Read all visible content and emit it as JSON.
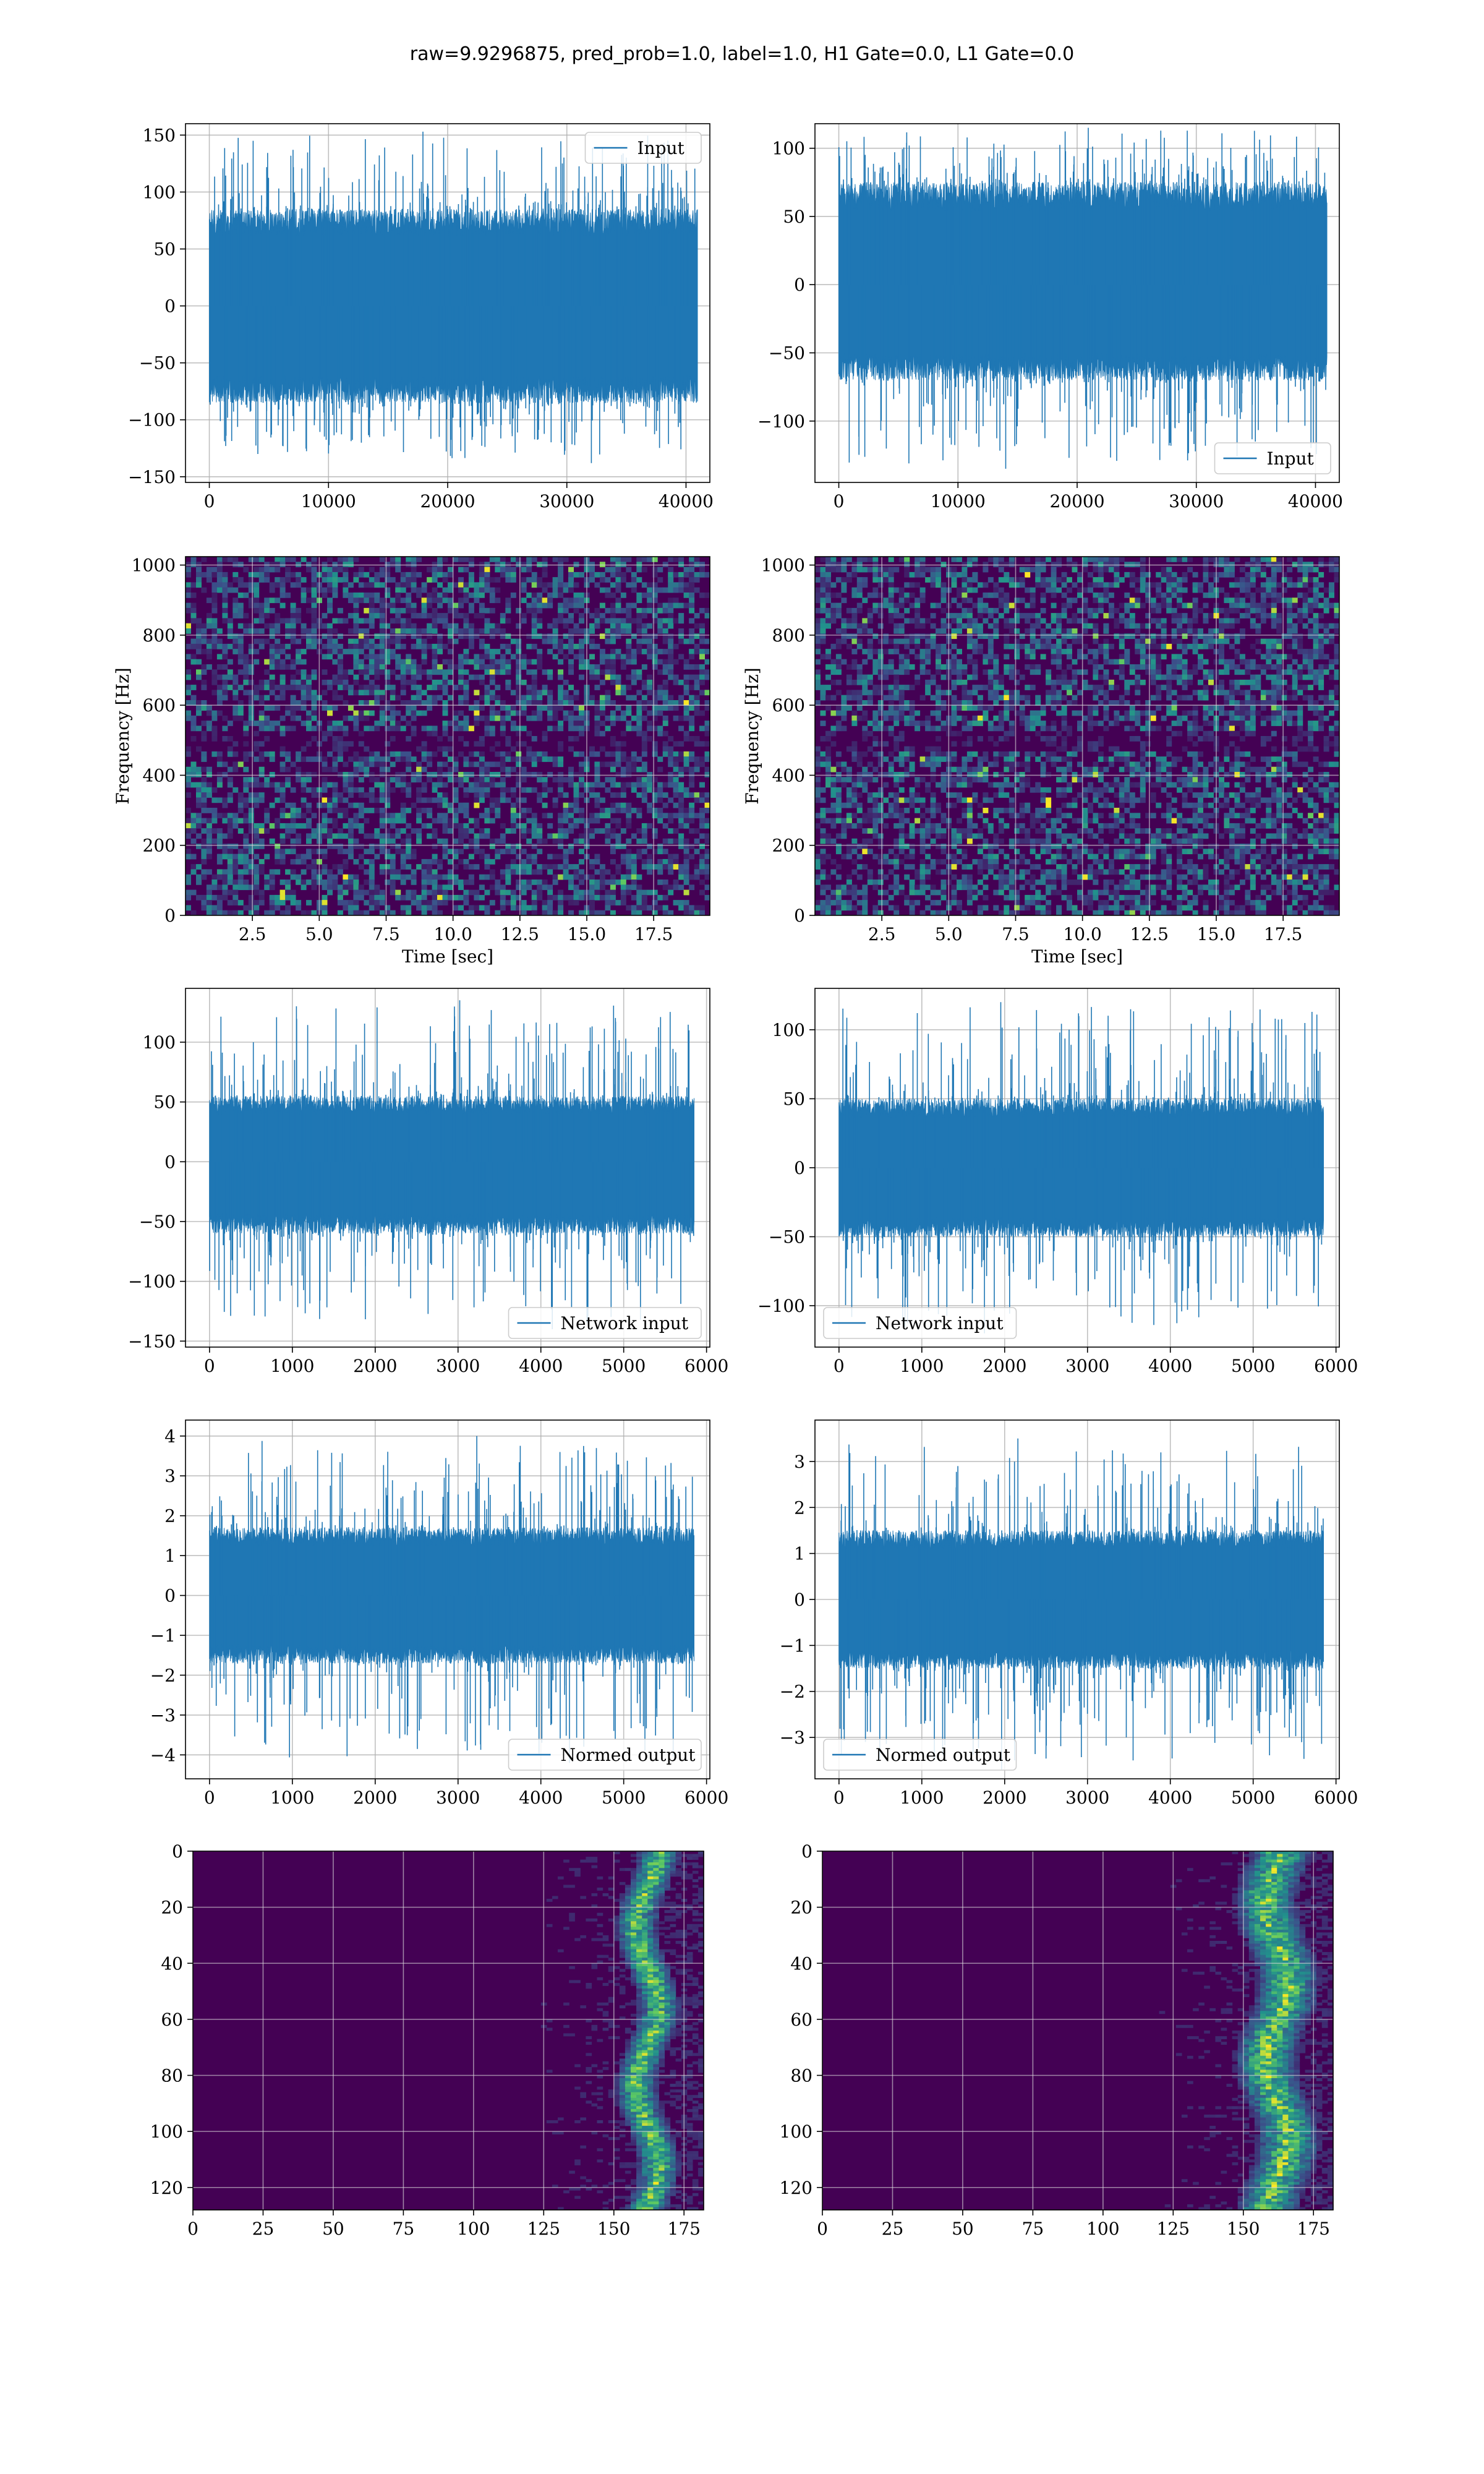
{
  "figure": {
    "title": "raw=9.9296875, pred_prob=1.0, label=1.0, H1 Gate=0.0, L1 Gate=0.0",
    "colors": {
      "line": "#1f77b4",
      "heat_low": "#440154",
      "heat_mid": "#21918c",
      "heat_high": "#fde725",
      "grid": "#b0b0b0"
    }
  },
  "chart_data": [
    {
      "id": "h1-input",
      "type": "line",
      "legend": "Input",
      "legend_loc": "upper right",
      "xlim": [
        -2000,
        42000
      ],
      "ylim": [
        -155,
        160
      ],
      "xticks": [
        0,
        10000,
        20000,
        30000,
        40000
      ],
      "yticks": [
        -150,
        -100,
        -50,
        0,
        50,
        100,
        150
      ],
      "signal": {
        "x_start": 0,
        "x_end": 40960,
        "envelope": [
          -85,
          85
        ],
        "peak_max": 153,
        "peak_min": -138
      }
    },
    {
      "id": "l1-input",
      "type": "line",
      "legend": "Input",
      "legend_loc": "lower right",
      "xlim": [
        -2000,
        42000
      ],
      "ylim": [
        -145,
        118
      ],
      "xticks": [
        0,
        10000,
        20000,
        30000,
        40000
      ],
      "yticks": [
        -100,
        -50,
        0,
        50,
        100
      ],
      "signal": {
        "x_start": 0,
        "x_end": 40960,
        "envelope": [
          -70,
          75
        ],
        "peak_max": 115,
        "peak_min": -135
      }
    },
    {
      "id": "h1-spectrogram",
      "type": "heatmap",
      "xlabel": "Time [sec]",
      "ylabel": "Frequency [Hz]",
      "xlim": [
        0,
        19.6
      ],
      "ylim": [
        0,
        1024
      ],
      "xticks": [
        2.5,
        5.0,
        7.5,
        10.0,
        12.5,
        15.0,
        17.5
      ],
      "yticks": [
        0,
        200,
        400,
        600,
        800,
        1000
      ]
    },
    {
      "id": "l1-spectrogram",
      "type": "heatmap",
      "xlabel": "Time [sec]",
      "ylabel": "Frequency [Hz]",
      "xlim": [
        0,
        19.6
      ],
      "ylim": [
        0,
        1024
      ],
      "xticks": [
        2.5,
        5.0,
        7.5,
        10.0,
        12.5,
        15.0,
        17.5
      ],
      "yticks": [
        0,
        200,
        400,
        600,
        800,
        1000
      ]
    },
    {
      "id": "h1-network-input",
      "type": "line",
      "legend": "Network input",
      "legend_loc": "lower right",
      "xlim": [
        -290,
        6040
      ],
      "ylim": [
        -155,
        145
      ],
      "xticks": [
        0,
        1000,
        2000,
        3000,
        4000,
        5000,
        6000
      ],
      "yticks": [
        -150,
        -100,
        -50,
        0,
        50,
        100
      ],
      "signal": {
        "x_start": 0,
        "x_end": 5850,
        "envelope": [
          -60,
          55
        ],
        "peak_max": 135,
        "peak_min": -140
      }
    },
    {
      "id": "l1-network-input",
      "type": "line",
      "legend": "Network input",
      "legend_loc": "lower left",
      "xlim": [
        -290,
        6040
      ],
      "ylim": [
        -130,
        130
      ],
      "xticks": [
        0,
        1000,
        2000,
        3000,
        4000,
        5000,
        6000
      ],
      "yticks": [
        -100,
        -50,
        0,
        50,
        100
      ],
      "signal": {
        "x_start": 0,
        "x_end": 5850,
        "envelope": [
          -50,
          50
        ],
        "peak_max": 120,
        "peak_min": -120
      }
    },
    {
      "id": "h1-normed-output",
      "type": "line",
      "legend": "Normed output",
      "legend_loc": "lower right",
      "xlim": [
        -290,
        6040
      ],
      "ylim": [
        -4.6,
        4.4
      ],
      "xticks": [
        0,
        1000,
        2000,
        3000,
        4000,
        5000,
        6000
      ],
      "yticks": [
        -4,
        -3,
        -2,
        -1,
        0,
        1,
        2,
        3,
        4
      ],
      "signal": {
        "x_start": 0,
        "x_end": 5850,
        "envelope": [
          -1.7,
          1.7
        ],
        "peak_max": 4.0,
        "peak_min": -4.2
      }
    },
    {
      "id": "l1-normed-output",
      "type": "line",
      "legend": "Normed output",
      "legend_loc": "lower left",
      "xlim": [
        -290,
        6040
      ],
      "ylim": [
        -3.9,
        3.9
      ],
      "xticks": [
        0,
        1000,
        2000,
        3000,
        4000,
        5000,
        6000
      ],
      "yticks": [
        -3,
        -2,
        -1,
        0,
        1,
        2,
        3
      ],
      "signal": {
        "x_start": 0,
        "x_end": 5850,
        "envelope": [
          -1.5,
          1.5
        ],
        "peak_max": 3.5,
        "peak_min": -3.7
      }
    },
    {
      "id": "h1-qtransform",
      "type": "heatmap",
      "xlim": [
        0,
        182
      ],
      "ylim": [
        128,
        0
      ],
      "xticks": [
        0,
        25,
        50,
        75,
        100,
        125,
        150,
        175
      ],
      "yticks": [
        0,
        20,
        40,
        60,
        80,
        100,
        120
      ],
      "track": {
        "x_center": [
          158,
          166
        ],
        "spread": 6
      }
    },
    {
      "id": "l1-qtransform",
      "type": "heatmap",
      "xlim": [
        0,
        182
      ],
      "ylim": [
        128,
        0
      ],
      "xticks": [
        0,
        25,
        50,
        75,
        100,
        125,
        150,
        175
      ],
      "yticks": [
        0,
        20,
        40,
        60,
        80,
        100,
        120
      ],
      "track": {
        "x_center": [
          158,
          166
        ],
        "spread": 9
      }
    }
  ]
}
